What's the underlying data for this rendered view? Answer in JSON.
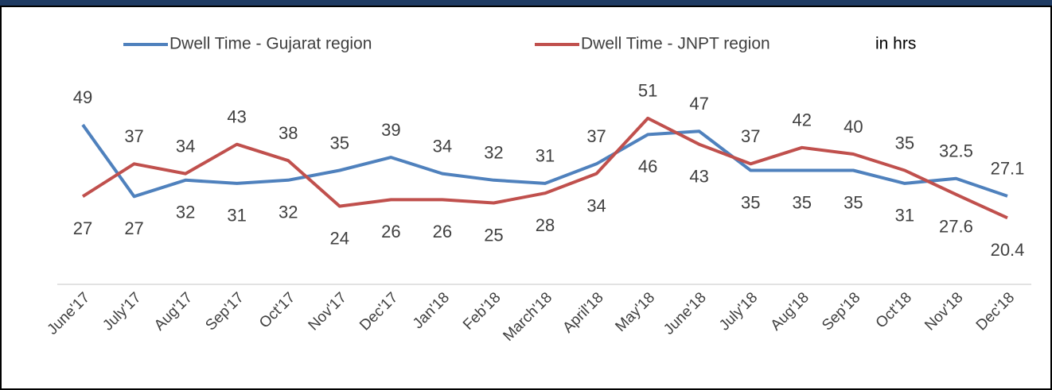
{
  "chart_data": {
    "type": "line",
    "annotation": "in hrs",
    "categories": [
      "June'17",
      "July'17",
      "Aug'17",
      "Sep'17",
      "Oct'17",
      "Nov'17",
      "Dec'17",
      "Jan'18",
      "Feb'18",
      "March'18",
      "April'18",
      "May'18",
      "June'18",
      "July'18",
      "Aug'18",
      "Sep'18",
      "Oct'18",
      "Nov'18",
      "Dec'18"
    ],
    "series": [
      {
        "name": "Dwell Time - Gujarat region",
        "color": "#4f81bd",
        "values": [
          49,
          27,
          32,
          31,
          32,
          35,
          39,
          34,
          32,
          31,
          37,
          46,
          47,
          35,
          35,
          35,
          31,
          32.5,
          27.1
        ]
      },
      {
        "name": "Dwell Time - JNPT region",
        "color": "#c0504d",
        "values": [
          27,
          37,
          34,
          43,
          38,
          24,
          26,
          26,
          25,
          28,
          34,
          51,
          43,
          37,
          42,
          40,
          35,
          27.6,
          20.4
        ]
      }
    ],
    "ylim": [
      0,
      60
    ],
    "grid": false
  }
}
